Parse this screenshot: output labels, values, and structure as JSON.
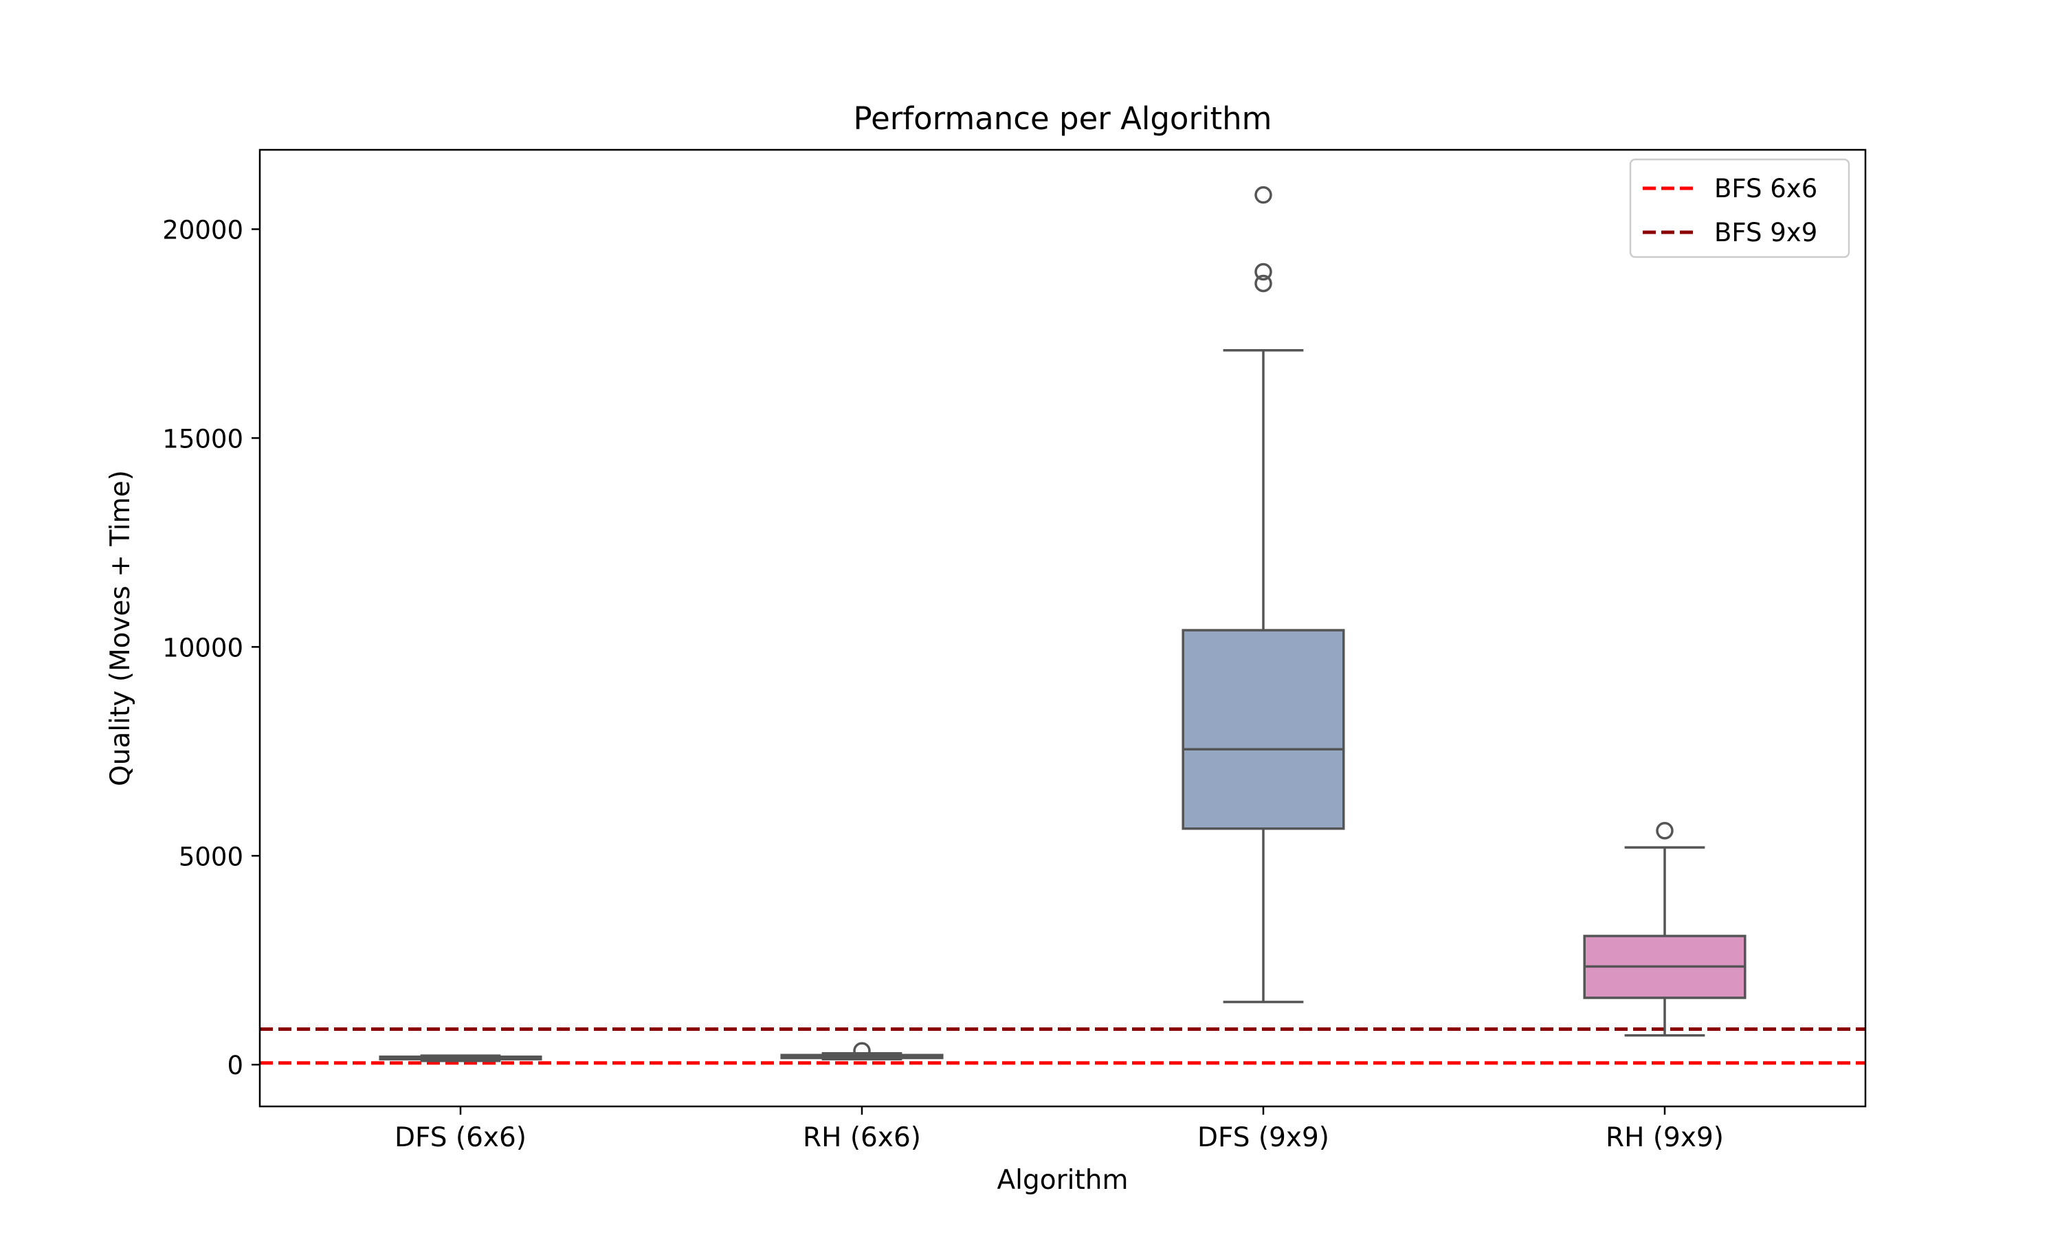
{
  "chart_data": {
    "type": "box",
    "title": "Performance per Algorithm",
    "xlabel": "Algorithm",
    "ylabel": "Quality (Moves + Time)",
    "ylim": [
      -1000,
      21900
    ],
    "yticks": [
      0,
      5000,
      10000,
      15000,
      20000
    ],
    "grid": false,
    "legend_position": "top-right",
    "categories": [
      "DFS (6x6)",
      "RH (6x6)",
      "DFS (9x9)",
      "RH (9x9)"
    ],
    "boxes": [
      {
        "category": "DFS (6x6)",
        "color": "#66c2a5",
        "whisker_low": 90,
        "q1": 130,
        "median": 165,
        "q3": 190,
        "whisker_high": 215,
        "outliers": []
      },
      {
        "category": "RH (6x6)",
        "color": "#fc8d62",
        "whisker_low": 130,
        "q1": 160,
        "median": 200,
        "q3": 230,
        "whisker_high": 270,
        "outliers": [
          330
        ]
      },
      {
        "category": "DFS (9x9)",
        "color": "#95a6c3",
        "whisker_low": 1500,
        "q1": 5650,
        "median": 7550,
        "q3": 10400,
        "whisker_high": 17100,
        "outliers": [
          18700,
          18980,
          20820
        ]
      },
      {
        "category": "RH (9x9)",
        "color": "#da95c0",
        "whisker_low": 700,
        "q1": 1600,
        "median": 2350,
        "q3": 3080,
        "whisker_high": 5200,
        "outliers": [
          5600
        ]
      }
    ],
    "reference_lines": [
      {
        "name": "BFS 6x6",
        "value": 40,
        "color": "#ff0000"
      },
      {
        "name": "BFS 9x9",
        "value": 850,
        "color": "#8b0000"
      }
    ],
    "box_edge_color": "#555555"
  }
}
